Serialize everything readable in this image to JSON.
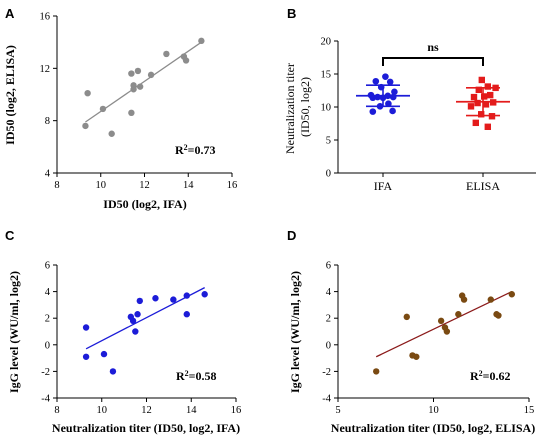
{
  "chart_data": [
    {
      "panel": "A",
      "type": "scatter",
      "title": "",
      "xlabel": "ID50 (log2, IFA)",
      "ylabel": "ID50 (log2, ELISA)",
      "xlim": [
        8,
        16
      ],
      "ylim": [
        4,
        16
      ],
      "xticks": [
        8,
        10,
        12,
        14,
        16
      ],
      "yticks": [
        4,
        8,
        12,
        16
      ],
      "annotation": "R2=0.73",
      "point_color": "#8c8c8c",
      "line_color": "#8c8c8c",
      "points": [
        {
          "x": 9.3,
          "y": 7.6
        },
        {
          "x": 9.4,
          "y": 10.1
        },
        {
          "x": 10.1,
          "y": 8.9
        },
        {
          "x": 10.5,
          "y": 7.0
        },
        {
          "x": 11.4,
          "y": 8.6
        },
        {
          "x": 11.4,
          "y": 11.6
        },
        {
          "x": 11.5,
          "y": 10.7
        },
        {
          "x": 11.5,
          "y": 10.4
        },
        {
          "x": 11.7,
          "y": 11.8
        },
        {
          "x": 11.8,
          "y": 10.6
        },
        {
          "x": 12.3,
          "y": 11.5
        },
        {
          "x": 13.0,
          "y": 13.1
        },
        {
          "x": 13.8,
          "y": 12.9
        },
        {
          "x": 13.9,
          "y": 12.6
        },
        {
          "x": 14.6,
          "y": 14.1
        }
      ],
      "fit": [
        {
          "x": 9.3,
          "y": 7.9
        },
        {
          "x": 14.6,
          "y": 14.0
        }
      ]
    },
    {
      "panel": "B",
      "type": "scatter",
      "title": "",
      "xlabel": "",
      "ylabel": "Neutralization titer (ID50, log2)",
      "ylim": [
        0,
        20
      ],
      "yticks": [
        0,
        5,
        10,
        15,
        20
      ],
      "categories": [
        "IFA",
        "ELISA"
      ],
      "annotation": "ns",
      "series": [
        {
          "name": "IFA",
          "color": "#1c1cd8",
          "mean": 11.7,
          "sd_low": 10.1,
          "sd_high": 13.3,
          "values": [
            9.3,
            9.4,
            10.1,
            10.5,
            11.4,
            11.4,
            11.5,
            11.5,
            11.7,
            11.8,
            12.3,
            13.0,
            13.8,
            13.9,
            14.6
          ],
          "offsets": [
            -0.17,
            0.16,
            -0.05,
            0.09,
            -0.17,
            0.0,
            0.17,
            -0.09,
            0.08,
            -0.2,
            0.19,
            -0.03,
            0.12,
            -0.12,
            0.04
          ]
        },
        {
          "name": "ELISA",
          "color": "#e31b1b",
          "mean": 10.8,
          "sd_low": 8.7,
          "sd_high": 12.9,
          "values": [
            7.0,
            7.6,
            8.6,
            8.9,
            10.1,
            10.4,
            10.6,
            10.7,
            11.5,
            11.6,
            11.8,
            12.6,
            12.9,
            13.1,
            14.1
          ],
          "offsets": [
            0.08,
            -0.12,
            0.15,
            -0.03,
            -0.2,
            0.05,
            -0.09,
            0.17,
            -0.15,
            0.02,
            0.12,
            -0.07,
            0.21,
            0.08,
            -0.02
          ]
        }
      ]
    },
    {
      "panel": "C",
      "type": "scatter",
      "title": "",
      "xlabel": "Neutralization titer (ID50, log2, IFA)",
      "ylabel": "IgG level (WU/ml, log2)",
      "xlim": [
        8,
        16
      ],
      "ylim": [
        -4,
        6
      ],
      "xticks": [
        8,
        10,
        12,
        14,
        16
      ],
      "yticks": [
        -4,
        -2,
        0,
        2,
        4,
        6
      ],
      "annotation": "R2=0.58",
      "point_color": "#1c1cd8",
      "line_color": "#1c1cd8",
      "points": [
        {
          "x": 9.3,
          "y": 1.3
        },
        {
          "x": 9.3,
          "y": -0.9
        },
        {
          "x": 10.1,
          "y": -0.7
        },
        {
          "x": 10.5,
          "y": -2.0
        },
        {
          "x": 11.3,
          "y": 2.1
        },
        {
          "x": 11.4,
          "y": 1.8
        },
        {
          "x": 11.5,
          "y": 1.0
        },
        {
          "x": 11.6,
          "y": 2.3
        },
        {
          "x": 11.7,
          "y": 3.3
        },
        {
          "x": 12.4,
          "y": 3.5
        },
        {
          "x": 13.2,
          "y": 3.4
        },
        {
          "x": 13.8,
          "y": 3.7
        },
        {
          "x": 13.8,
          "y": 2.3
        },
        {
          "x": 14.6,
          "y": 3.8
        }
      ],
      "fit": [
        {
          "x": 9.3,
          "y": -0.3
        },
        {
          "x": 14.6,
          "y": 4.3
        }
      ]
    },
    {
      "panel": "D",
      "type": "scatter",
      "title": "",
      "xlabel": "Neutralization titer (ID50, log2, ELISA)",
      "ylabel": "IgG level (WU/ml, log2)",
      "xlim": [
        5,
        15
      ],
      "ylim": [
        -4,
        6
      ],
      "xticks": [
        5,
        10,
        15
      ],
      "yticks": [
        -4,
        -2,
        0,
        2,
        4,
        6
      ],
      "annotation": "R2=0.62",
      "point_color": "#7a4a12",
      "line_color": "#8b1a1a",
      "points": [
        {
          "x": 7.0,
          "y": -2.0
        },
        {
          "x": 8.6,
          "y": 2.1
        },
        {
          "x": 8.9,
          "y": -0.8
        },
        {
          "x": 9.1,
          "y": -0.9
        },
        {
          "x": 10.4,
          "y": 1.8
        },
        {
          "x": 10.6,
          "y": 1.3
        },
        {
          "x": 10.7,
          "y": 1.0
        },
        {
          "x": 11.3,
          "y": 2.3
        },
        {
          "x": 11.5,
          "y": 3.7
        },
        {
          "x": 11.6,
          "y": 3.4
        },
        {
          "x": 13.0,
          "y": 3.4
        },
        {
          "x": 13.3,
          "y": 2.3
        },
        {
          "x": 13.4,
          "y": 2.2
        },
        {
          "x": 14.1,
          "y": 3.8
        }
      ],
      "fit": [
        {
          "x": 7.0,
          "y": -0.9
        },
        {
          "x": 14.1,
          "y": 4.0
        }
      ]
    }
  ]
}
